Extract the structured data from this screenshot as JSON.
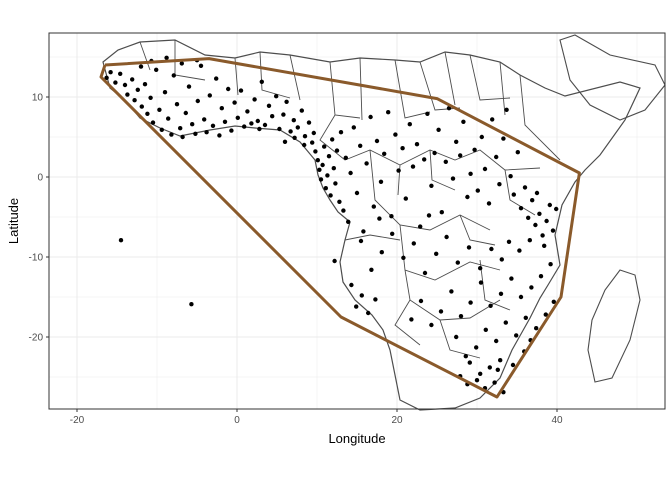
{
  "chart_data": {
    "type": "scatter",
    "xlabel": "Longitude",
    "ylabel": "Latitude",
    "xlim": [
      -23.5,
      53.5
    ],
    "ylim": [
      -29,
      18
    ],
    "x_ticks": [
      -20,
      0,
      20,
      40
    ],
    "y_ticks": [
      10,
      0,
      -10,
      -20
    ],
    "x_tick_labels": [
      "-20",
      "0",
      "20",
      "40"
    ],
    "y_tick_labels": [
      "10",
      "0",
      "-10",
      "-20"
    ],
    "grid": true,
    "theme": "bw",
    "colors": {
      "points": "#000000",
      "hull": "#8a5a2b",
      "borders": "#4d4d4d",
      "grid": "#ebebeb",
      "panel_border": "#333333"
    },
    "hull": [
      {
        "x": -16.5,
        "y": 14.0
      },
      {
        "x": -3.5,
        "y": 14.8
      },
      {
        "x": 25.0,
        "y": 9.8
      },
      {
        "x": 42.8,
        "y": 0.5
      },
      {
        "x": 40.5,
        "y": -15.0
      },
      {
        "x": 32.5,
        "y": -27.5
      },
      {
        "x": 13.0,
        "y": -17.5
      },
      {
        "x": -17.0,
        "y": 12.5
      },
      {
        "x": -16.5,
        "y": 14.0
      }
    ],
    "points": [
      {
        "x": -16.3,
        "y": 12.4
      },
      {
        "x": -15.8,
        "y": 13.1
      },
      {
        "x": -15.2,
        "y": 11.8
      },
      {
        "x": -14.6,
        "y": 12.9
      },
      {
        "x": -14.0,
        "y": 11.5
      },
      {
        "x": -13.7,
        "y": 10.3
      },
      {
        "x": -13.1,
        "y": 12.2
      },
      {
        "x": -12.8,
        "y": 9.6
      },
      {
        "x": -12.4,
        "y": 10.9
      },
      {
        "x": -11.9,
        "y": 8.8
      },
      {
        "x": -11.5,
        "y": 11.6
      },
      {
        "x": -11.2,
        "y": 7.9
      },
      {
        "x": -10.8,
        "y": 9.9
      },
      {
        "x": -10.5,
        "y": 6.8
      },
      {
        "x": -10.1,
        "y": 13.4
      },
      {
        "x": -9.7,
        "y": 8.4
      },
      {
        "x": -9.4,
        "y": 5.9
      },
      {
        "x": -9.0,
        "y": 10.6
      },
      {
        "x": -8.6,
        "y": 7.3
      },
      {
        "x": -8.2,
        "y": 5.3
      },
      {
        "x": -7.9,
        "y": 12.7
      },
      {
        "x": -7.5,
        "y": 9.1
      },
      {
        "x": -7.1,
        "y": 6.1
      },
      {
        "x": -6.8,
        "y": 5.0
      },
      {
        "x": -6.4,
        "y": 8.0
      },
      {
        "x": -6.0,
        "y": 11.3
      },
      {
        "x": -5.6,
        "y": 6.6
      },
      {
        "x": -5.2,
        "y": 5.4
      },
      {
        "x": -4.9,
        "y": 9.5
      },
      {
        "x": -4.5,
        "y": 13.9
      },
      {
        "x": -4.1,
        "y": 7.2
      },
      {
        "x": -3.8,
        "y": 5.6
      },
      {
        "x": -3.4,
        "y": 10.2
      },
      {
        "x": -3.0,
        "y": 6.4
      },
      {
        "x": -2.6,
        "y": 12.3
      },
      {
        "x": -2.2,
        "y": 5.2
      },
      {
        "x": -1.9,
        "y": 8.6
      },
      {
        "x": -1.5,
        "y": 6.9
      },
      {
        "x": -1.1,
        "y": 11.0
      },
      {
        "x": -0.7,
        "y": 5.8
      },
      {
        "x": -0.3,
        "y": 9.3
      },
      {
        "x": 0.1,
        "y": 7.4
      },
      {
        "x": 0.5,
        "y": 10.8
      },
      {
        "x": 0.9,
        "y": 6.3
      },
      {
        "x": 1.3,
        "y": 8.2
      },
      {
        "x": 1.8,
        "y": 6.7
      },
      {
        "x": 2.2,
        "y": 9.7
      },
      {
        "x": 2.6,
        "y": 7.0
      },
      {
        "x": 3.1,
        "y": 11.9
      },
      {
        "x": 3.5,
        "y": 6.5
      },
      {
        "x": 4.0,
        "y": 8.9
      },
      {
        "x": 4.4,
        "y": 7.6
      },
      {
        "x": 4.9,
        "y": 10.1
      },
      {
        "x": 5.3,
        "y": 6.0
      },
      {
        "x": 5.8,
        "y": 7.8
      },
      {
        "x": 6.2,
        "y": 9.4
      },
      {
        "x": 6.7,
        "y": 5.7
      },
      {
        "x": 7.1,
        "y": 7.1
      },
      {
        "x": 7.6,
        "y": 6.2
      },
      {
        "x": 8.1,
        "y": 8.3
      },
      {
        "x": 8.5,
        "y": 5.1
      },
      {
        "x": 9.0,
        "y": 6.8
      },
      {
        "x": 9.4,
        "y": 4.3
      },
      {
        "x": 9.8,
        "y": 3.2
      },
      {
        "x": 10.1,
        "y": 2.1
      },
      {
        "x": 10.3,
        "y": 0.9
      },
      {
        "x": 10.5,
        "y": -0.3
      },
      {
        "x": 10.7,
        "y": 1.5
      },
      {
        "x": 10.9,
        "y": 3.8
      },
      {
        "x": 11.1,
        "y": -1.4
      },
      {
        "x": 11.3,
        "y": 0.2
      },
      {
        "x": 11.5,
        "y": 2.6
      },
      {
        "x": 11.7,
        "y": -2.3
      },
      {
        "x": 11.9,
        "y": 4.7
      },
      {
        "x": 12.1,
        "y": 1.1
      },
      {
        "x": 12.3,
        "y": -0.8
      },
      {
        "x": 12.5,
        "y": 3.3
      },
      {
        "x": 12.8,
        "y": -3.1
      },
      {
        "x": 13.0,
        "y": 5.6
      },
      {
        "x": 13.3,
        "y": -4.2
      },
      {
        "x": 13.6,
        "y": 2.4
      },
      {
        "x": 13.9,
        "y": -5.6
      },
      {
        "x": 14.2,
        "y": 0.5
      },
      {
        "x": 14.6,
        "y": 6.2
      },
      {
        "x": 15.0,
        "y": -2.0
      },
      {
        "x": 15.4,
        "y": 3.9
      },
      {
        "x": 15.8,
        "y": -6.8
      },
      {
        "x": 16.2,
        "y": 1.7
      },
      {
        "x": 16.7,
        "y": 7.5
      },
      {
        "x": 17.1,
        "y": -3.7
      },
      {
        "x": 17.5,
        "y": 4.5
      },
      {
        "x": 18.0,
        "y": -0.6
      },
      {
        "x": 18.4,
        "y": 2.9
      },
      {
        "x": 18.9,
        "y": 8.1
      },
      {
        "x": 19.3,
        "y": -4.9
      },
      {
        "x": 19.8,
        "y": 5.3
      },
      {
        "x": 20.2,
        "y": 0.8
      },
      {
        "x": 20.7,
        "y": 3.6
      },
      {
        "x": 21.1,
        "y": -2.7
      },
      {
        "x": 21.6,
        "y": 6.6
      },
      {
        "x": 22.0,
        "y": 1.3
      },
      {
        "x": 22.5,
        "y": 4.1
      },
      {
        "x": 22.9,
        "y": -6.2
      },
      {
        "x": 23.4,
        "y": 2.2
      },
      {
        "x": 23.8,
        "y": 7.9
      },
      {
        "x": 24.3,
        "y": -1.1
      },
      {
        "x": 24.7,
        "y": 3.0
      },
      {
        "x": 25.2,
        "y": 5.9
      },
      {
        "x": 25.6,
        "y": -4.4
      },
      {
        "x": 26.1,
        "y": 1.9
      },
      {
        "x": 26.5,
        "y": 8.6
      },
      {
        "x": 27.0,
        "y": -0.2
      },
      {
        "x": 27.4,
        "y": 4.4
      },
      {
        "x": 27.9,
        "y": 2.7
      },
      {
        "x": 28.3,
        "y": 6.9
      },
      {
        "x": 28.8,
        "y": -2.5
      },
      {
        "x": 29.2,
        "y": 0.4
      },
      {
        "x": 29.7,
        "y": 3.4
      },
      {
        "x": 30.1,
        "y": -1.7
      },
      {
        "x": 30.6,
        "y": 5.0
      },
      {
        "x": 31.0,
        "y": 1.0
      },
      {
        "x": 31.5,
        "y": -3.3
      },
      {
        "x": 31.9,
        "y": 7.2
      },
      {
        "x": 32.4,
        "y": 2.5
      },
      {
        "x": 32.8,
        "y": -0.9
      },
      {
        "x": 33.3,
        "y": 4.8
      },
      {
        "x": 33.7,
        "y": 8.4
      },
      {
        "x": 34.2,
        "y": 0.1
      },
      {
        "x": 34.6,
        "y": -2.2
      },
      {
        "x": 35.1,
        "y": 3.1
      },
      {
        "x": 35.5,
        "y": -3.9
      },
      {
        "x": 36.0,
        "y": -1.3
      },
      {
        "x": 36.4,
        "y": -5.1
      },
      {
        "x": 36.9,
        "y": -2.9
      },
      {
        "x": 37.3,
        "y": -6.0
      },
      {
        "x": 37.8,
        "y": -4.6
      },
      {
        "x": 38.2,
        "y": -7.3
      },
      {
        "x": 38.7,
        "y": -5.5
      },
      {
        "x": 39.1,
        "y": -3.5
      },
      {
        "x": 39.5,
        "y": -6.7
      },
      {
        "x": 39.9,
        "y": -4.0
      },
      {
        "x": 37.5,
        "y": -2.0
      },
      {
        "x": 38.4,
        "y": -8.6
      },
      {
        "x": 36.6,
        "y": -7.9
      },
      {
        "x": 35.3,
        "y": -9.2
      },
      {
        "x": 34.0,
        "y": -8.1
      },
      {
        "x": 33.1,
        "y": -10.3
      },
      {
        "x": 31.8,
        "y": -9.0
      },
      {
        "x": 30.4,
        "y": -11.4
      },
      {
        "x": 29.0,
        "y": -8.8
      },
      {
        "x": 27.6,
        "y": -10.7
      },
      {
        "x": 26.2,
        "y": -7.5
      },
      {
        "x": 24.9,
        "y": -9.6
      },
      {
        "x": 23.5,
        "y": -12.0
      },
      {
        "x": 22.1,
        "y": -8.3
      },
      {
        "x": 20.8,
        "y": -10.1
      },
      {
        "x": 19.4,
        "y": -7.1
      },
      {
        "x": 18.1,
        "y": -9.4
      },
      {
        "x": 16.8,
        "y": -11.6
      },
      {
        "x": 15.5,
        "y": -8.0
      },
      {
        "x": 14.3,
        "y": -13.5
      },
      {
        "x": 14.9,
        "y": -16.2
      },
      {
        "x": 15.6,
        "y": -14.8
      },
      {
        "x": 16.4,
        "y": -17.0
      },
      {
        "x": 17.3,
        "y": -15.3
      },
      {
        "x": 39.2,
        "y": -10.9
      },
      {
        "x": 38.0,
        "y": -12.4
      },
      {
        "x": 36.8,
        "y": -13.8
      },
      {
        "x": 35.5,
        "y": -15.0
      },
      {
        "x": 34.3,
        "y": -12.7
      },
      {
        "x": 33.0,
        "y": -14.6
      },
      {
        "x": 31.7,
        "y": -16.1
      },
      {
        "x": 30.5,
        "y": -13.2
      },
      {
        "x": 29.2,
        "y": -15.7
      },
      {
        "x": 28.0,
        "y": -17.4
      },
      {
        "x": 26.8,
        "y": -14.3
      },
      {
        "x": 25.5,
        "y": -16.8
      },
      {
        "x": 24.3,
        "y": -18.5
      },
      {
        "x": 23.0,
        "y": -15.5
      },
      {
        "x": 21.8,
        "y": -17.8
      },
      {
        "x": 38.6,
        "y": -17.2
      },
      {
        "x": 37.4,
        "y": -18.9
      },
      {
        "x": 36.1,
        "y": -17.6
      },
      {
        "x": 34.9,
        "y": -19.8
      },
      {
        "x": 33.6,
        "y": -18.2
      },
      {
        "x": 32.4,
        "y": -20.5
      },
      {
        "x": 31.1,
        "y": -19.1
      },
      {
        "x": 29.9,
        "y": -21.3
      },
      {
        "x": 28.6,
        "y": -22.4
      },
      {
        "x": 27.4,
        "y": -20.0
      },
      {
        "x": 32.9,
        "y": -22.9
      },
      {
        "x": 31.6,
        "y": -23.8
      },
      {
        "x": 30.4,
        "y": -24.6
      },
      {
        "x": 29.1,
        "y": -23.2
      },
      {
        "x": 27.9,
        "y": -24.9
      },
      {
        "x": 32.2,
        "y": -25.7
      },
      {
        "x": 31.0,
        "y": -26.4
      },
      {
        "x": 32.6,
        "y": -24.1
      },
      {
        "x": 30.0,
        "y": -25.4
      },
      {
        "x": 28.8,
        "y": -25.9
      },
      {
        "x": 39.6,
        "y": -15.6
      },
      {
        "x": 35.9,
        "y": -21.8
      },
      {
        "x": 34.5,
        "y": -23.5
      },
      {
        "x": 33.3,
        "y": -26.9
      },
      {
        "x": 36.7,
        "y": -20.4
      },
      {
        "x": -14.5,
        "y": -7.9
      },
      {
        "x": -5.7,
        "y": -15.9
      },
      {
        "x": 12.2,
        "y": -10.5
      },
      {
        "x": 24.0,
        "y": -4.8
      },
      {
        "x": 17.8,
        "y": -5.2
      },
      {
        "x": 8.4,
        "y": 4.0
      },
      {
        "x": 7.2,
        "y": 4.9
      },
      {
        "x": 6.0,
        "y": 4.4
      },
      {
        "x": 9.6,
        "y": 5.5
      },
      {
        "x": 2.8,
        "y": 6.0
      },
      {
        "x": -10.7,
        "y": 14.5
      },
      {
        "x": -8.8,
        "y": 14.9
      },
      {
        "x": -6.9,
        "y": 14.2
      },
      {
        "x": -5.0,
        "y": 14.6
      },
      {
        "x": -12.0,
        "y": 13.8
      }
    ]
  }
}
